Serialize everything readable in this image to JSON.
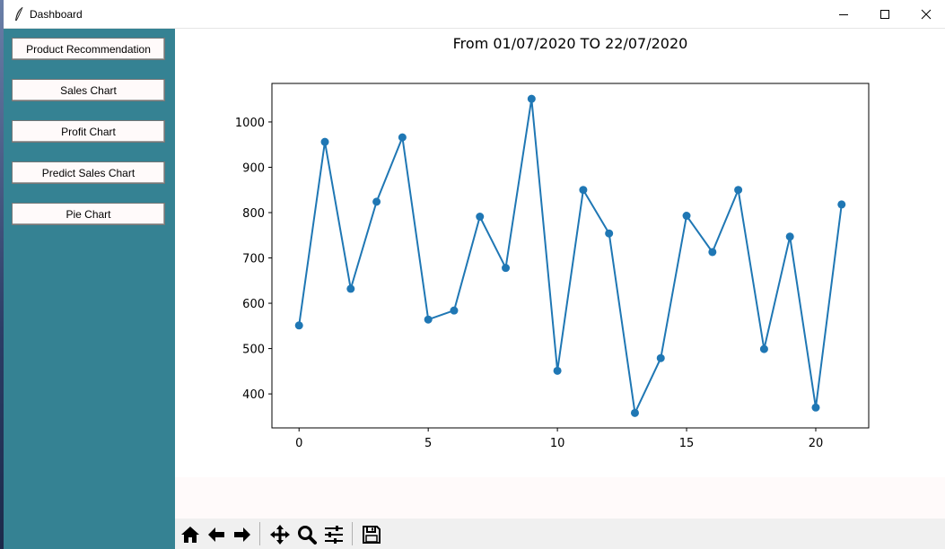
{
  "window": {
    "title": "Dashboard"
  },
  "sidebar": {
    "background": "#358293",
    "buttons": [
      {
        "label": "Product Recommendation"
      },
      {
        "label": "Sales Chart"
      },
      {
        "label": "Profit Chart"
      },
      {
        "label": "Predict Sales Chart"
      },
      {
        "label": "Pie Chart"
      }
    ]
  },
  "toolbar": {
    "icons": [
      "home-icon",
      "back-arrow-icon",
      "forward-arrow-icon",
      "pan-icon",
      "zoom-icon",
      "configure-subplots-icon",
      "save-icon"
    ]
  },
  "chart_data": {
    "type": "line",
    "title": "From 01/07/2020 TO 22/07/2020",
    "xlabel": "",
    "ylabel": "",
    "x": [
      0,
      1,
      2,
      3,
      4,
      5,
      6,
      7,
      8,
      9,
      10,
      11,
      12,
      13,
      14,
      15,
      16,
      17,
      18,
      19,
      20,
      21
    ],
    "series": [
      {
        "values": [
          551,
          956,
          632,
          824,
          966,
          564,
          584,
          791,
          678,
          1051,
          451,
          850,
          754,
          358,
          479,
          793,
          713,
          850,
          499,
          747,
          370,
          818
        ],
        "color": "#1f77b4",
        "marker": "circle"
      }
    ],
    "xlim": [
      -1.05,
      22.05
    ],
    "ylim": [
      325,
      1085
    ],
    "xticks": [
      0,
      5,
      10,
      15,
      20
    ],
    "yticks": [
      400,
      500,
      600,
      700,
      800,
      900,
      1000
    ],
    "grid": false
  }
}
